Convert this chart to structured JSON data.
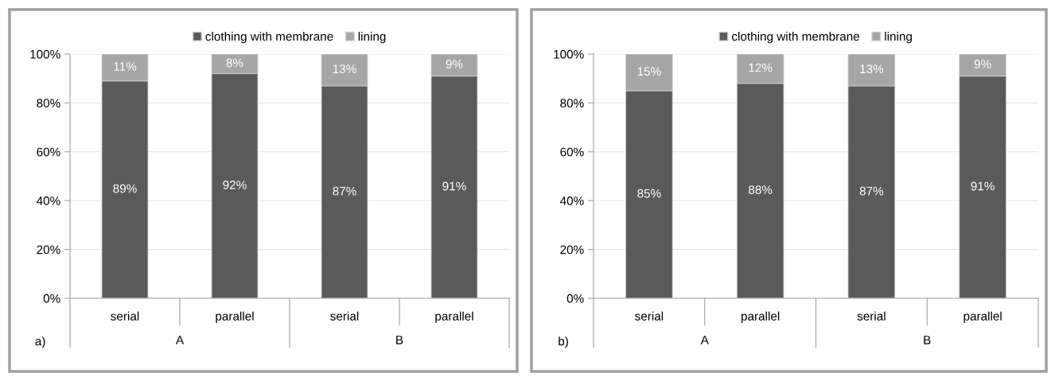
{
  "chart_data": [
    {
      "type": "bar",
      "stacked": true,
      "categories": [
        "serial",
        "parallel",
        "serial",
        "parallel"
      ],
      "series": [
        {
          "name": "clothing with membrane",
          "color": "#5a5a5a",
          "values": [
            89,
            92,
            87,
            91
          ]
        },
        {
          "name": "lining",
          "color": "#a6a6a6",
          "values": [
            11,
            8,
            13,
            9
          ]
        }
      ],
      "ylim": [
        0,
        100
      ],
      "yticks": [
        {
          "value": 0,
          "label": "0%"
        },
        {
          "value": 20,
          "label": "20%"
        },
        {
          "value": 40,
          "label": "40%"
        },
        {
          "value": 60,
          "label": "60%"
        },
        {
          "value": 80,
          "label": "80%"
        },
        {
          "value": 100,
          "label": "100%"
        }
      ],
      "value_labels": [
        [
          "89%",
          "92%",
          "87%",
          "91%"
        ],
        [
          "11%",
          "8%",
          "13%",
          "9%"
        ]
      ],
      "grid": "y",
      "legend": "top",
      "annotations": [
        "a)",
        "A",
        "B"
      ]
    },
    {
      "type": "bar",
      "stacked": true,
      "categories": [
        "serial",
        "parallel",
        "serial",
        "parallel"
      ],
      "series": [
        {
          "name": "clothing with membrane",
          "color": "#5a5a5a",
          "values": [
            85,
            88,
            87,
            91
          ]
        },
        {
          "name": "lining",
          "color": "#a6a6a6",
          "values": [
            15,
            12,
            13,
            9
          ]
        }
      ],
      "ylim": [
        0,
        100
      ],
      "yticks": [
        {
          "value": 0,
          "label": "0%"
        },
        {
          "value": 20,
          "label": "20%"
        },
        {
          "value": 40,
          "label": "40%"
        },
        {
          "value": 60,
          "label": "60%"
        },
        {
          "value": 80,
          "label": "80%"
        },
        {
          "value": 100,
          "label": "100%"
        }
      ],
      "value_labels": [
        [
          "85%",
          "88%",
          "87%",
          "91%"
        ],
        [
          "15%",
          "12%",
          "13%",
          "9%"
        ]
      ],
      "grid": "y",
      "legend": "top",
      "annotations": [
        "b)",
        "A",
        "B"
      ]
    }
  ]
}
